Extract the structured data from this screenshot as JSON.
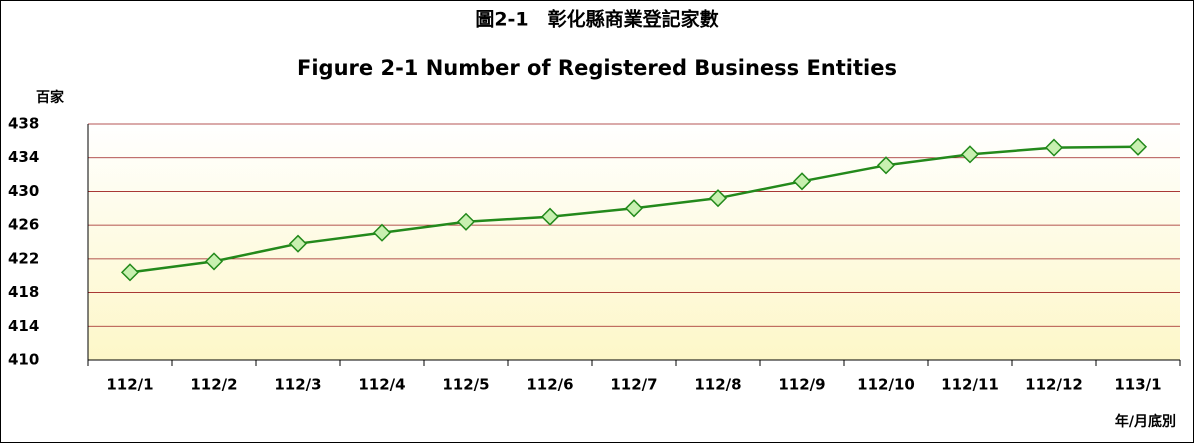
{
  "chart_data": {
    "type": "line",
    "title": "圖2-1　彰化縣商業登記家數",
    "subtitle": "Figure 2-1    Number of Registered Business Entities",
    "y_axis_label": "百家",
    "x_axis_label": "年/月底別",
    "categories": [
      "112/1",
      "112/2",
      "112/3",
      "112/4",
      "112/5",
      "112/6",
      "112/7",
      "112/8",
      "112/9",
      "112/10",
      "112/11",
      "112/12",
      "113/1"
    ],
    "series": [
      {
        "color": "#23891b",
        "values": [
          420.4,
          421.7,
          423.8,
          425.1,
          426.4,
          427.0,
          428.0,
          429.2,
          431.2,
          433.1,
          434.4,
          435.2,
          435.3
        ]
      }
    ],
    "ylim": [
      410,
      438
    ],
    "yticks": [
      410,
      414,
      418,
      422,
      426,
      430,
      434,
      438
    ],
    "grid": true
  }
}
